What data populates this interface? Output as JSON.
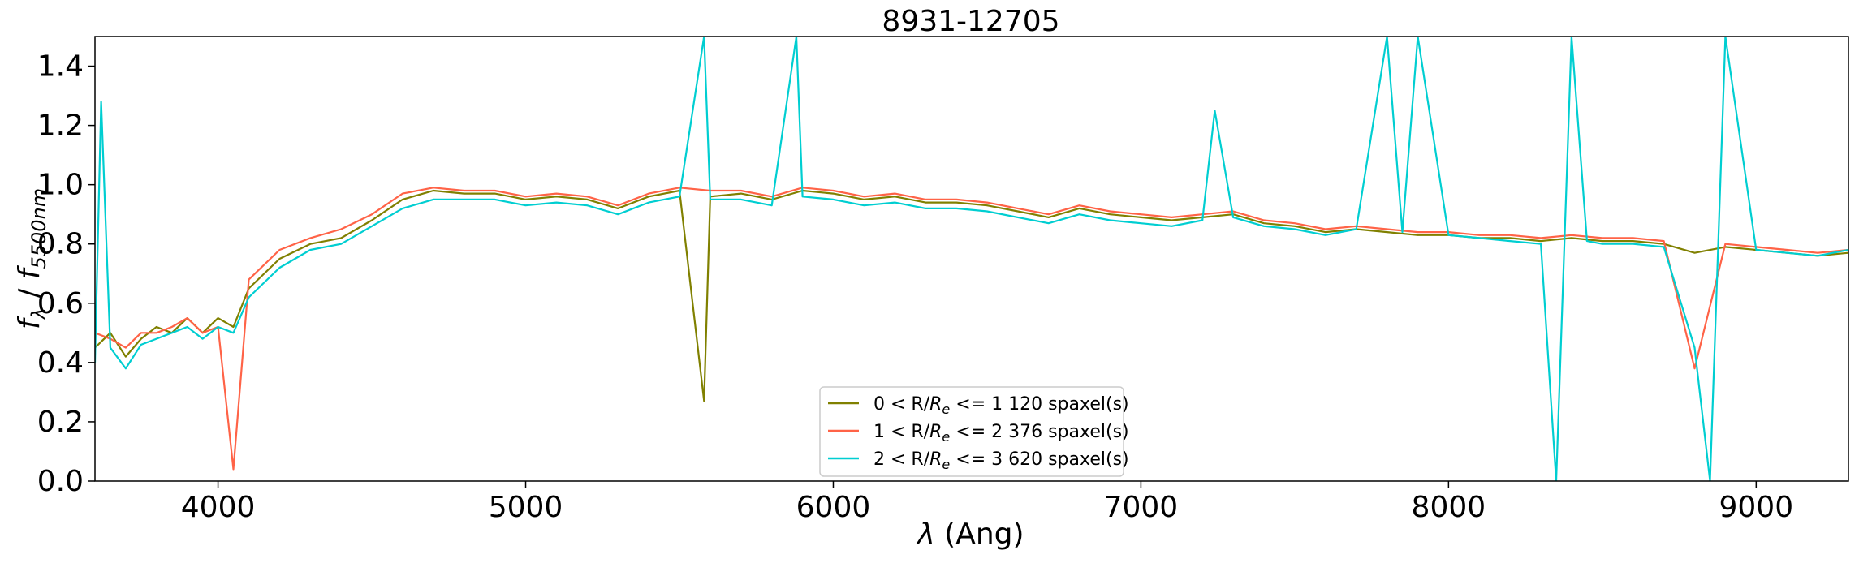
{
  "chart_data": {
    "type": "line",
    "title": "8931-12705",
    "xlabel_symbol": "λ",
    "xlabel_rest": " (Ang)",
    "ylabel_f": "f",
    "ylabel_sub1": "λ",
    "ylabel_sep": " / ",
    "ylabel_sub2": "5500nm",
    "xlim": [
      3600,
      9300
    ],
    "ylim": [
      0.0,
      1.5
    ],
    "xticks": [
      4000,
      5000,
      6000,
      7000,
      8000,
      9000
    ],
    "xtick_labels": [
      "4000",
      "5000",
      "6000",
      "7000",
      "8000",
      "9000"
    ],
    "yticks": [
      0.0,
      0.2,
      0.4,
      0.6,
      0.8,
      1.0,
      1.2,
      1.4
    ],
    "ytick_labels": [
      "0.0",
      "0.2",
      "0.4",
      "0.6",
      "0.8",
      "1.0",
      "1.2",
      "1.4"
    ],
    "grid": false,
    "legend_position": "lower-center",
    "legend": [
      {
        "pre": "0 < R/",
        "R": "R",
        "sub": "e",
        "post": " <= 1 120 spaxel(s)",
        "color": "#808000"
      },
      {
        "pre": "1 < R/",
        "R": "R",
        "sub": "e",
        "post": " <= 2 376 spaxel(s)",
        "color": "#ff6347"
      },
      {
        "pre": "2 < R/",
        "R": "R",
        "sub": "e",
        "post": " <= 3 620 spaxel(s)",
        "color": "#00ced1"
      }
    ],
    "series": [
      {
        "color": "#808000",
        "x": [
          3600,
          3650,
          3700,
          3750,
          3800,
          3850,
          3900,
          3950,
          4000,
          4050,
          4100,
          4200,
          4300,
          4400,
          4500,
          4600,
          4700,
          4800,
          4900,
          5000,
          5100,
          5200,
          5300,
          5400,
          5500,
          5580,
          5600,
          5700,
          5800,
          5900,
          6000,
          6100,
          6200,
          6300,
          6400,
          6500,
          6600,
          6700,
          6800,
          6900,
          7000,
          7100,
          7200,
          7300,
          7400,
          7500,
          7600,
          7700,
          7800,
          7900,
          8000,
          8100,
          8200,
          8300,
          8400,
          8500,
          8600,
          8700,
          8800,
          8900,
          9000,
          9100,
          9200,
          9300
        ],
        "y": [
          0.45,
          0.5,
          0.42,
          0.48,
          0.52,
          0.5,
          0.55,
          0.5,
          0.55,
          0.52,
          0.65,
          0.75,
          0.8,
          0.82,
          0.88,
          0.95,
          0.98,
          0.97,
          0.97,
          0.95,
          0.96,
          0.95,
          0.92,
          0.96,
          0.98,
          0.27,
          0.96,
          0.97,
          0.95,
          0.98,
          0.97,
          0.95,
          0.96,
          0.94,
          0.94,
          0.93,
          0.91,
          0.89,
          0.92,
          0.9,
          0.89,
          0.88,
          0.89,
          0.9,
          0.87,
          0.86,
          0.84,
          0.85,
          0.84,
          0.83,
          0.83,
          0.82,
          0.82,
          0.81,
          0.82,
          0.81,
          0.81,
          0.8,
          0.77,
          0.79,
          0.78,
          0.77,
          0.76,
          0.77
        ]
      },
      {
        "color": "#ff6347",
        "x": [
          3600,
          3650,
          3700,
          3750,
          3800,
          3850,
          3900,
          3950,
          4000,
          4050,
          4100,
          4200,
          4300,
          4400,
          4500,
          4600,
          4700,
          4800,
          4900,
          5000,
          5100,
          5200,
          5300,
          5400,
          5500,
          5600,
          5700,
          5800,
          5900,
          6000,
          6100,
          6200,
          6300,
          6400,
          6500,
          6600,
          6700,
          6800,
          6900,
          7000,
          7100,
          7200,
          7300,
          7400,
          7500,
          7600,
          7700,
          7800,
          7900,
          8000,
          8100,
          8200,
          8300,
          8400,
          8500,
          8600,
          8700,
          8800,
          8900,
          9000,
          9100,
          9200,
          9300
        ],
        "y": [
          0.5,
          0.48,
          0.45,
          0.5,
          0.5,
          0.52,
          0.55,
          0.5,
          0.52,
          0.04,
          0.68,
          0.78,
          0.82,
          0.85,
          0.9,
          0.97,
          0.99,
          0.98,
          0.98,
          0.96,
          0.97,
          0.96,
          0.93,
          0.97,
          0.99,
          0.98,
          0.98,
          0.96,
          0.99,
          0.98,
          0.96,
          0.97,
          0.95,
          0.95,
          0.94,
          0.92,
          0.9,
          0.93,
          0.91,
          0.9,
          0.89,
          0.9,
          0.91,
          0.88,
          0.87,
          0.85,
          0.86,
          0.85,
          0.84,
          0.84,
          0.83,
          0.83,
          0.82,
          0.83,
          0.82,
          0.82,
          0.81,
          0.38,
          0.8,
          0.79,
          0.78,
          0.77,
          0.78
        ]
      },
      {
        "color": "#00ced1",
        "x": [
          3600,
          3620,
          3650,
          3700,
          3750,
          3800,
          3850,
          3900,
          3950,
          4000,
          4050,
          4100,
          4200,
          4300,
          4400,
          4500,
          4600,
          4700,
          4800,
          4900,
          5000,
          5100,
          5200,
          5300,
          5400,
          5500,
          5580,
          5600,
          5700,
          5800,
          5880,
          5900,
          6000,
          6100,
          6200,
          6300,
          6400,
          6500,
          6600,
          6700,
          6800,
          6900,
          7000,
          7100,
          7200,
          7240,
          7300,
          7400,
          7500,
          7600,
          7700,
          7800,
          7850,
          7900,
          8000,
          8100,
          8200,
          8300,
          8350,
          8400,
          8450,
          8500,
          8600,
          8700,
          8800,
          8850,
          8900,
          9000,
          9100,
          9200,
          9300
        ],
        "y": [
          0.4,
          1.28,
          0.45,
          0.38,
          0.46,
          0.48,
          0.5,
          0.52,
          0.48,
          0.52,
          0.5,
          0.62,
          0.72,
          0.78,
          0.8,
          0.86,
          0.92,
          0.95,
          0.95,
          0.95,
          0.93,
          0.94,
          0.93,
          0.9,
          0.94,
          0.96,
          1.5,
          0.95,
          0.95,
          0.93,
          1.5,
          0.96,
          0.95,
          0.93,
          0.94,
          0.92,
          0.92,
          0.91,
          0.89,
          0.87,
          0.9,
          0.88,
          0.87,
          0.86,
          0.88,
          1.25,
          0.89,
          0.86,
          0.85,
          0.83,
          0.85,
          1.5,
          0.84,
          1.5,
          0.83,
          0.82,
          0.81,
          0.8,
          0.0,
          1.5,
          0.81,
          0.8,
          0.8,
          0.79,
          0.45,
          0.0,
          1.5,
          0.78,
          0.77,
          0.76,
          0.78
        ]
      }
    ]
  }
}
